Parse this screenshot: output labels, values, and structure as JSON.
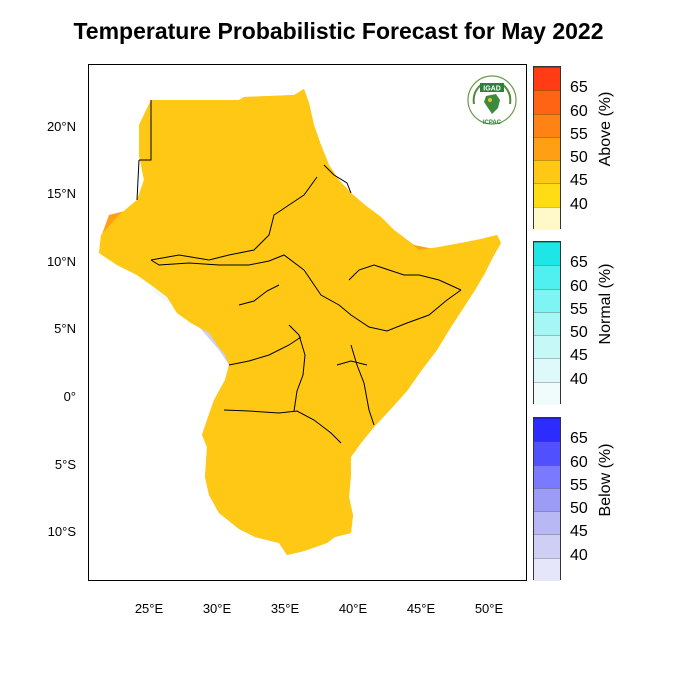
{
  "title": "Temperature Probabilistic Forecast for May 2022",
  "logo": {
    "top_text": "IGAD",
    "bottom_text": "ICPAC"
  },
  "axes": {
    "lat_ticks": [
      "20°N",
      "15°N",
      "10°N",
      "5°N",
      "0°",
      "5°S",
      "10°S"
    ],
    "lon_ticks": [
      "25°E",
      "30°E",
      "35°E",
      "40°E",
      "45°E",
      "50°E"
    ]
  },
  "colorbars": [
    {
      "title": "Above (%)",
      "labels": [
        "65",
        "60",
        "55",
        "50",
        "45",
        "40"
      ],
      "colors": [
        "#ff3c14",
        "#ff6414",
        "#ff8214",
        "#ffa014",
        "#ffc814",
        "#ffdc14",
        "#fff8c8"
      ]
    },
    {
      "title": "Normal (%)",
      "labels": [
        "65",
        "60",
        "55",
        "50",
        "45",
        "40"
      ],
      "colors": [
        "#1ee6e6",
        "#50f0f0",
        "#7ef4f4",
        "#a6f6f6",
        "#c6f8f8",
        "#def9f9",
        "#f0fbfb"
      ]
    },
    {
      "title": "Below (%)",
      "labels": [
        "65",
        "60",
        "55",
        "50",
        "45",
        "40"
      ],
      "colors": [
        "#2c2cff",
        "#5050ff",
        "#7a7aff",
        "#9c9cf6",
        "#b8b8f4",
        "#cfcff6",
        "#e6e6fa"
      ]
    }
  ],
  "regions": {
    "above_colors": {
      "45": "#ffc814",
      "50": "#ffa014",
      "55": "#ff8214"
    },
    "below_colors": {
      "40": "#cfcff6",
      "45": "#b8b8f4"
    },
    "normal_color": "#eef9fb"
  }
}
